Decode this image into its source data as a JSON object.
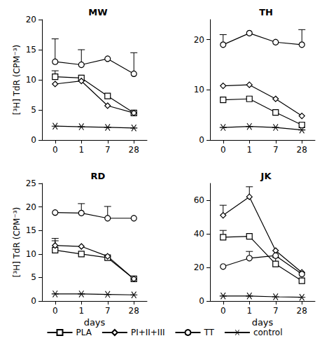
{
  "chart_data": [
    {
      "type": "line",
      "title": "MW",
      "ylabel": "[³H] TdR (CPM⁻³)",
      "categories": [
        "0",
        "1",
        "7",
        "28"
      ],
      "ylim": [
        0,
        20
      ],
      "yticks": [
        0,
        5,
        10,
        15,
        20
      ],
      "grid": false,
      "legend": "bottom",
      "series": [
        {
          "name": "PLA",
          "color": "#000000",
          "marker": "square",
          "values": [
            10.5,
            10.3,
            7.3,
            4.5
          ],
          "errors": [
            1.0,
            null,
            null,
            null
          ]
        },
        {
          "name": "PI+II+III",
          "color": "#000000",
          "marker": "diamond",
          "values": [
            9.3,
            9.8,
            5.7,
            4.5
          ],
          "errors": [
            null,
            null,
            null,
            null
          ]
        },
        {
          "name": "TT",
          "color": "#000000",
          "marker": "circle",
          "values": [
            13.0,
            12.5,
            13.5,
            11.0
          ],
          "errors": [
            3.8,
            2.5,
            null,
            3.5
          ]
        },
        {
          "name": "control",
          "color": "#000000",
          "marker": "star",
          "values": [
            2.3,
            2.2,
            2.1,
            2.0
          ],
          "errors": [
            null,
            null,
            null,
            null
          ]
        }
      ]
    },
    {
      "type": "line",
      "title": "TH",
      "categories": [
        "0",
        "1",
        "7",
        "28"
      ],
      "ylim": [
        0,
        24
      ],
      "yticks": [
        0,
        10,
        20
      ],
      "grid": false,
      "legend": "bottom",
      "series": [
        {
          "name": "PLA",
          "color": "#000000",
          "marker": "square",
          "values": [
            8.0,
            8.2,
            5.5,
            3.0
          ],
          "errors": [
            null,
            null,
            null,
            null
          ]
        },
        {
          "name": "PI+II+III",
          "color": "#000000",
          "marker": "diamond",
          "values": [
            10.8,
            11.0,
            8.2,
            4.8
          ],
          "errors": [
            null,
            null,
            null,
            null
          ]
        },
        {
          "name": "TT",
          "color": "#000000",
          "marker": "circle",
          "values": [
            19.0,
            21.3,
            19.5,
            19.0
          ],
          "errors": [
            2.0,
            null,
            null,
            3.0
          ]
        },
        {
          "name": "control",
          "color": "#000000",
          "marker": "star",
          "values": [
            2.5,
            2.7,
            2.5,
            2.0
          ],
          "errors": [
            null,
            null,
            null,
            null
          ]
        }
      ]
    },
    {
      "type": "line",
      "title": "RD",
      "ylabel": "[³H] TdR (CPM⁻³)",
      "xlabel": "days",
      "categories": [
        "0",
        "1",
        "7",
        "28"
      ],
      "ylim": [
        0,
        25
      ],
      "yticks": [
        0,
        5,
        10,
        15,
        20,
        25
      ],
      "grid": false,
      "legend": "bottom",
      "series": [
        {
          "name": "PLA",
          "color": "#000000",
          "marker": "square",
          "values": [
            10.8,
            10.0,
            9.2,
            4.7
          ],
          "errors": [
            2.0,
            null,
            null,
            null
          ]
        },
        {
          "name": "PI+II+III",
          "color": "#000000",
          "marker": "diamond",
          "values": [
            11.8,
            11.6,
            9.5,
            4.7
          ],
          "errors": [
            1.5,
            null,
            null,
            null
          ]
        },
        {
          "name": "TT",
          "color": "#000000",
          "marker": "circle",
          "values": [
            18.8,
            18.7,
            17.6,
            17.6
          ],
          "errors": [
            null,
            2.0,
            2.5,
            null
          ]
        },
        {
          "name": "control",
          "color": "#000000",
          "marker": "star",
          "values": [
            1.5,
            1.5,
            1.4,
            1.3
          ],
          "errors": [
            null,
            null,
            null,
            null
          ]
        }
      ]
    },
    {
      "type": "line",
      "title": "JK",
      "xlabel": "days",
      "categories": [
        "0",
        "1",
        "7",
        "28"
      ],
      "ylim": [
        0,
        70
      ],
      "yticks": [
        0,
        20,
        40,
        60
      ],
      "grid": false,
      "legend": "bottom",
      "series": [
        {
          "name": "PLA",
          "color": "#000000",
          "marker": "square",
          "values": [
            38.0,
            38.5,
            22.0,
            12.0
          ],
          "errors": [
            4.0,
            null,
            4.0,
            null
          ]
        },
        {
          "name": "PI+II+III",
          "color": "#000000",
          "marker": "diamond",
          "values": [
            51.0,
            62.0,
            30.0,
            17.0
          ],
          "errors": [
            6.0,
            6.0,
            null,
            null
          ]
        },
        {
          "name": "TT",
          "color": "#000000",
          "marker": "circle",
          "values": [
            20.5,
            25.5,
            27.0,
            16.0
          ],
          "errors": [
            null,
            4.0,
            null,
            null
          ]
        },
        {
          "name": "control",
          "color": "#000000",
          "marker": "star",
          "values": [
            3.0,
            3.0,
            2.5,
            2.2
          ],
          "errors": [
            null,
            null,
            null,
            null
          ]
        }
      ]
    }
  ]
}
